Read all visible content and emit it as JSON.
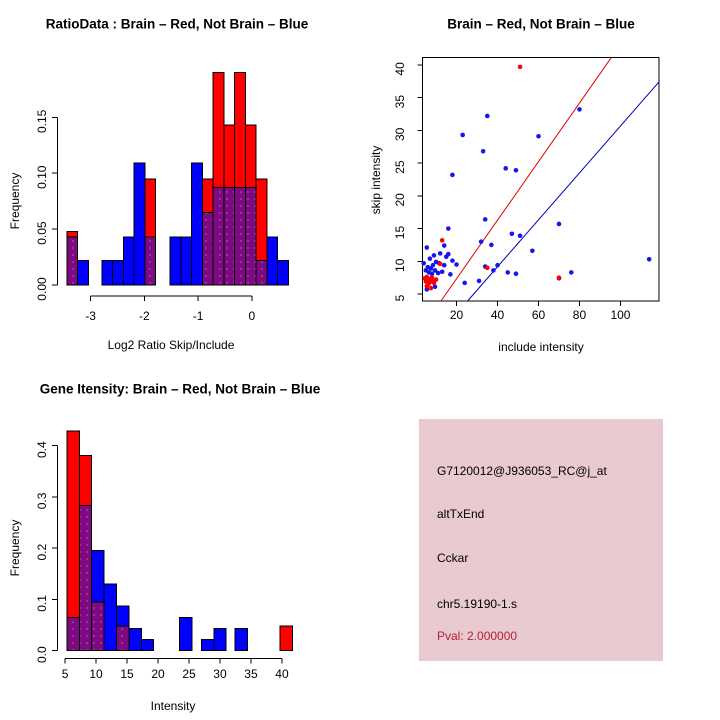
{
  "app": {
    "kind": "R graphics 2x2 plot grid",
    "background": "#ffffff"
  },
  "colors": {
    "red": "#ff0000",
    "blue": "#0000ff",
    "purple": "#7d0a80",
    "dot_blue": "#1515ef",
    "dot_red": "#ff0000",
    "line_red": "#e00000",
    "line_blue": "#0000b8",
    "pval_text": "#b22239",
    "info_box_pink": "#eec8ce",
    "axis": "#000000"
  },
  "chart_data": [
    {
      "id": "ratio-histogram",
      "type": "bar",
      "title": "RatioData : Brain – Red, Not Brain – Blue",
      "xlabel": "Log2 Ratio Skip/Include",
      "ylabel": "Frequency",
      "series": [
        {
          "name": "Brain",
          "color": "red"
        },
        {
          "name": "Not Brain",
          "color": "blue"
        },
        {
          "name": "overlap",
          "color": "purple"
        }
      ],
      "bin_width": 0.2,
      "xlim": [
        -3.55,
        0.85
      ],
      "ylim": [
        0,
        0.1943
      ],
      "xtick_values": [
        -3,
        -2,
        -1,
        0
      ],
      "xtick_labels": [
        "-3",
        "-2",
        "-1",
        "0"
      ],
      "ytick_values": [
        0,
        0.05,
        0.1,
        0.15
      ],
      "ytick_labels": [
        "0.00",
        "0.05",
        "0.10",
        "0.15"
      ],
      "bars": [
        {
          "x": -3.44,
          "red": 0.048,
          "blue": 0.043
        },
        {
          "x": -3.24,
          "red": 0,
          "blue": 0.022
        },
        {
          "x": -2.79,
          "red": 0,
          "blue": 0.022
        },
        {
          "x": -2.59,
          "red": 0,
          "blue": 0.022
        },
        {
          "x": -2.39,
          "red": 0,
          "blue": 0.043
        },
        {
          "x": -2.19,
          "red": 0,
          "blue": 0.109
        },
        {
          "x": -1.99,
          "red": 0.095,
          "blue": 0.043
        },
        {
          "x": -1.52,
          "red": 0,
          "blue": 0.043
        },
        {
          "x": -1.32,
          "red": 0,
          "blue": 0.043
        },
        {
          "x": -1.12,
          "red": 0,
          "blue": 0.109
        },
        {
          "x": -0.92,
          "red": 0.095,
          "blue": 0.065
        },
        {
          "x": -0.72,
          "red": 0.19,
          "blue": 0.087
        },
        {
          "x": -0.52,
          "red": 0.143,
          "blue": 0.087
        },
        {
          "x": -0.32,
          "red": 0.19,
          "blue": 0.087
        },
        {
          "x": -0.12,
          "red": 0.143,
          "blue": 0.087
        },
        {
          "x": 0.08,
          "red": 0.095,
          "blue": 0.022
        },
        {
          "x": 0.28,
          "red": 0,
          "blue": 0.043
        },
        {
          "x": 0.48,
          "red": 0,
          "blue": 0.022
        }
      ]
    },
    {
      "id": "intensity-scatter",
      "type": "scatter",
      "title": "Brain – Red, Not Brain – Blue",
      "xlabel": "include intensity",
      "ylabel": "skip intensity",
      "xlim": [
        3.4,
        118.8
      ],
      "ylim": [
        3.93,
        41.1
      ],
      "xtick_values": [
        20,
        40,
        60,
        80,
        100
      ],
      "xtick_labels": [
        "20",
        "40",
        "60",
        "80",
        "100"
      ],
      "ytick_values": [
        5,
        10,
        15,
        20,
        25,
        30,
        35,
        40
      ],
      "ytick_labels": [
        "5",
        "10",
        "15",
        "20",
        "25",
        "30",
        "35",
        "40"
      ],
      "points_blue": [
        [
          4,
          9.7
        ],
        [
          5,
          8.6
        ],
        [
          5.5,
          12.1
        ],
        [
          5.5,
          5.7
        ],
        [
          6,
          9.1
        ],
        [
          6.5,
          8.3
        ],
        [
          7,
          10.4
        ],
        [
          7,
          6.9
        ],
        [
          7.5,
          8.9
        ],
        [
          8,
          8.1
        ],
        [
          8.5,
          9.4
        ],
        [
          9,
          10.9
        ],
        [
          9.5,
          8.6
        ],
        [
          9.5,
          6.1
        ],
        [
          10,
          9.9
        ],
        [
          11,
          8.2
        ],
        [
          11.5,
          9.7
        ],
        [
          12,
          11.2
        ],
        [
          13,
          8.4
        ],
        [
          14,
          12.4
        ],
        [
          14,
          9.4
        ],
        [
          15,
          10.7
        ],
        [
          16,
          15
        ],
        [
          16,
          11.1
        ],
        [
          17,
          8
        ],
        [
          18,
          10.1
        ],
        [
          18,
          23.2
        ],
        [
          20,
          9.5
        ],
        [
          23,
          29.3
        ],
        [
          24,
          6.7
        ],
        [
          31,
          7
        ],
        [
          32,
          13
        ],
        [
          33,
          26.8
        ],
        [
          34,
          16.4
        ],
        [
          34,
          9.2
        ],
        [
          35,
          32.2
        ],
        [
          37,
          12.5
        ],
        [
          38,
          8.6
        ],
        [
          40,
          9.4
        ],
        [
          44,
          24.2
        ],
        [
          45,
          8.3
        ],
        [
          47,
          14.2
        ],
        [
          49,
          23.9
        ],
        [
          49,
          8.1
        ],
        [
          51,
          13.9
        ],
        [
          57,
          11.6
        ],
        [
          60,
          29.1
        ],
        [
          70,
          15.7
        ],
        [
          70,
          7.4
        ],
        [
          76,
          8.3
        ],
        [
          80,
          33.2
        ],
        [
          114,
          10.3
        ]
      ],
      "points_red": [
        [
          4.5,
          7.4
        ],
        [
          5,
          6.9
        ],
        [
          5.5,
          7.6
        ],
        [
          5.5,
          6.2
        ],
        [
          6,
          7.1
        ],
        [
          6.5,
          6.6
        ],
        [
          7,
          7.3
        ],
        [
          7.5,
          6.9
        ],
        [
          7.5,
          5.9
        ],
        [
          8,
          7.5
        ],
        [
          8.5,
          7.1
        ],
        [
          9,
          6.7
        ],
        [
          10,
          7.2
        ],
        [
          12,
          9.6
        ],
        [
          13,
          13.2
        ],
        [
          35,
          9
        ],
        [
          51,
          39.7
        ],
        [
          70,
          7.5
        ]
      ],
      "line_red": {
        "x1": 12.4,
        "y1": 3.93,
        "x2": 95.5,
        "y2": 41.1
      },
      "line_blue": {
        "x1": 25.4,
        "y1": 3.93,
        "x2": 118.8,
        "y2": 37.4
      }
    },
    {
      "id": "gene-intensity-histogram",
      "type": "bar",
      "title": "Gene Itensity: Brain – Red, Not Brain – Blue",
      "xlabel": "Intensity",
      "ylabel": "Frequency",
      "series": [
        {
          "name": "Brain",
          "color": "red"
        },
        {
          "name": "Not Brain",
          "color": "blue"
        },
        {
          "name": "overlap",
          "color": "purple"
        }
      ],
      "bin_width": 2,
      "xlim": [
        4.8,
        42.2
      ],
      "ylim": [
        0,
        0.44
      ],
      "xtick_values": [
        5,
        10,
        15,
        20,
        25,
        30,
        35,
        40
      ],
      "xtick_labels": [
        "5",
        "10",
        "15",
        "20",
        "25",
        "30",
        "35",
        "40"
      ],
      "ytick_values": [
        0,
        0.1,
        0.2,
        0.3,
        0.4
      ],
      "ytick_labels": [
        "0.0",
        "0.1",
        "0.2",
        "0.3",
        "0.4"
      ],
      "bars": [
        {
          "x": 5.3,
          "red": 0.429,
          "blue": 0.065
        },
        {
          "x": 7.3,
          "red": 0.381,
          "blue": 0.283
        },
        {
          "x": 9.3,
          "red": 0.095,
          "blue": 0.196
        },
        {
          "x": 11.3,
          "red": 0,
          "blue": 0.13
        },
        {
          "x": 13.3,
          "red": 0.048,
          "blue": 0.087
        },
        {
          "x": 15.3,
          "red": 0,
          "blue": 0.043
        },
        {
          "x": 17.3,
          "red": 0,
          "blue": 0.022
        },
        {
          "x": 23.5,
          "red": 0,
          "blue": 0.065
        },
        {
          "x": 27.0,
          "red": 0,
          "blue": 0.022
        },
        {
          "x": 29.0,
          "red": 0,
          "blue": 0.043
        },
        {
          "x": 32.4,
          "red": 0,
          "blue": 0.043
        },
        {
          "x": 39.7,
          "red": 0.048,
          "blue": 0
        }
      ]
    }
  ],
  "info_panel": {
    "probe_id": "G7120012@J936053_RC@j_at",
    "event_type": "altTxEnd",
    "gene": "Cckar",
    "location": "chr5.19190-1.s",
    "pval_label": "Pval: 2.000000"
  }
}
